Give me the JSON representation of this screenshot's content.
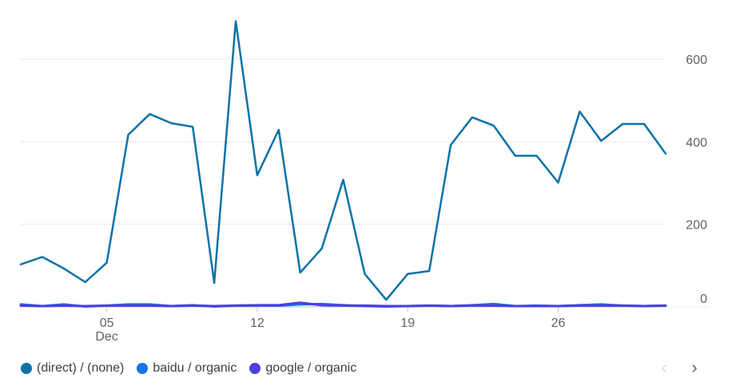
{
  "chart_data": {
    "type": "line",
    "x": [
      "Dec 1",
      "Dec 2",
      "Dec 3",
      "Dec 4",
      "Dec 5",
      "Dec 6",
      "Dec 7",
      "Dec 8",
      "Dec 9",
      "Dec 10",
      "Dec 11",
      "Dec 12",
      "Dec 13",
      "Dec 14",
      "Dec 15",
      "Dec 16",
      "Dec 17",
      "Dec 18",
      "Dec 19",
      "Dec 20",
      "Dec 21",
      "Dec 22",
      "Dec 23",
      "Dec 24",
      "Dec 25",
      "Dec 26",
      "Dec 27",
      "Dec 28",
      "Dec 29",
      "Dec 30",
      "Dec 31"
    ],
    "xticks": [
      {
        "day": "05",
        "month": "Dec",
        "index": 4
      },
      {
        "day": "12",
        "month": "",
        "index": 11
      },
      {
        "day": "19",
        "month": "",
        "index": 18
      },
      {
        "day": "26",
        "month": "",
        "index": 25
      }
    ],
    "yticks": [
      "0",
      "200",
      "400",
      "600"
    ],
    "ylim": [
      0,
      600
    ],
    "grid": true,
    "legend_position": "bottom-left",
    "series": [
      {
        "name": "(direct) / (none)",
        "color": "#0b72a8",
        "values": [
          103,
          121,
          93,
          60,
          107,
          417,
          467,
          445,
          436,
          58,
          692,
          319,
          429,
          83,
          141,
          308,
          80,
          17,
          80,
          87,
          392,
          459,
          439,
          366,
          366,
          301,
          473,
          402,
          443,
          443,
          371
        ]
      },
      {
        "name": "baidu / organic",
        "color": "#1a73e8",
        "values": [
          6,
          2,
          6,
          1,
          3,
          6,
          6,
          2,
          4,
          1,
          3,
          3,
          3,
          6,
          7,
          4,
          2,
          1,
          2,
          3,
          2,
          4,
          7,
          2,
          3,
          2,
          4,
          6,
          3,
          2,
          3
        ]
      },
      {
        "name": "google / organic",
        "color": "#4b3fe0",
        "values": [
          3,
          2,
          3,
          2,
          3,
          3,
          3,
          2,
          3,
          2,
          3,
          4,
          4,
          10,
          4,
          3,
          3,
          2,
          2,
          3,
          2,
          3,
          3,
          2,
          2,
          2,
          3,
          3,
          3,
          2,
          3
        ]
      }
    ]
  },
  "legend": {
    "items": [
      {
        "label": "(direct) / (none)",
        "color": "#0b72a8"
      },
      {
        "label": "baidu / organic",
        "color": "#1a73e8"
      },
      {
        "label": "google / organic",
        "color": "#4b3fe0"
      }
    ]
  },
  "pager": {
    "prev": "‹",
    "next": "›"
  }
}
